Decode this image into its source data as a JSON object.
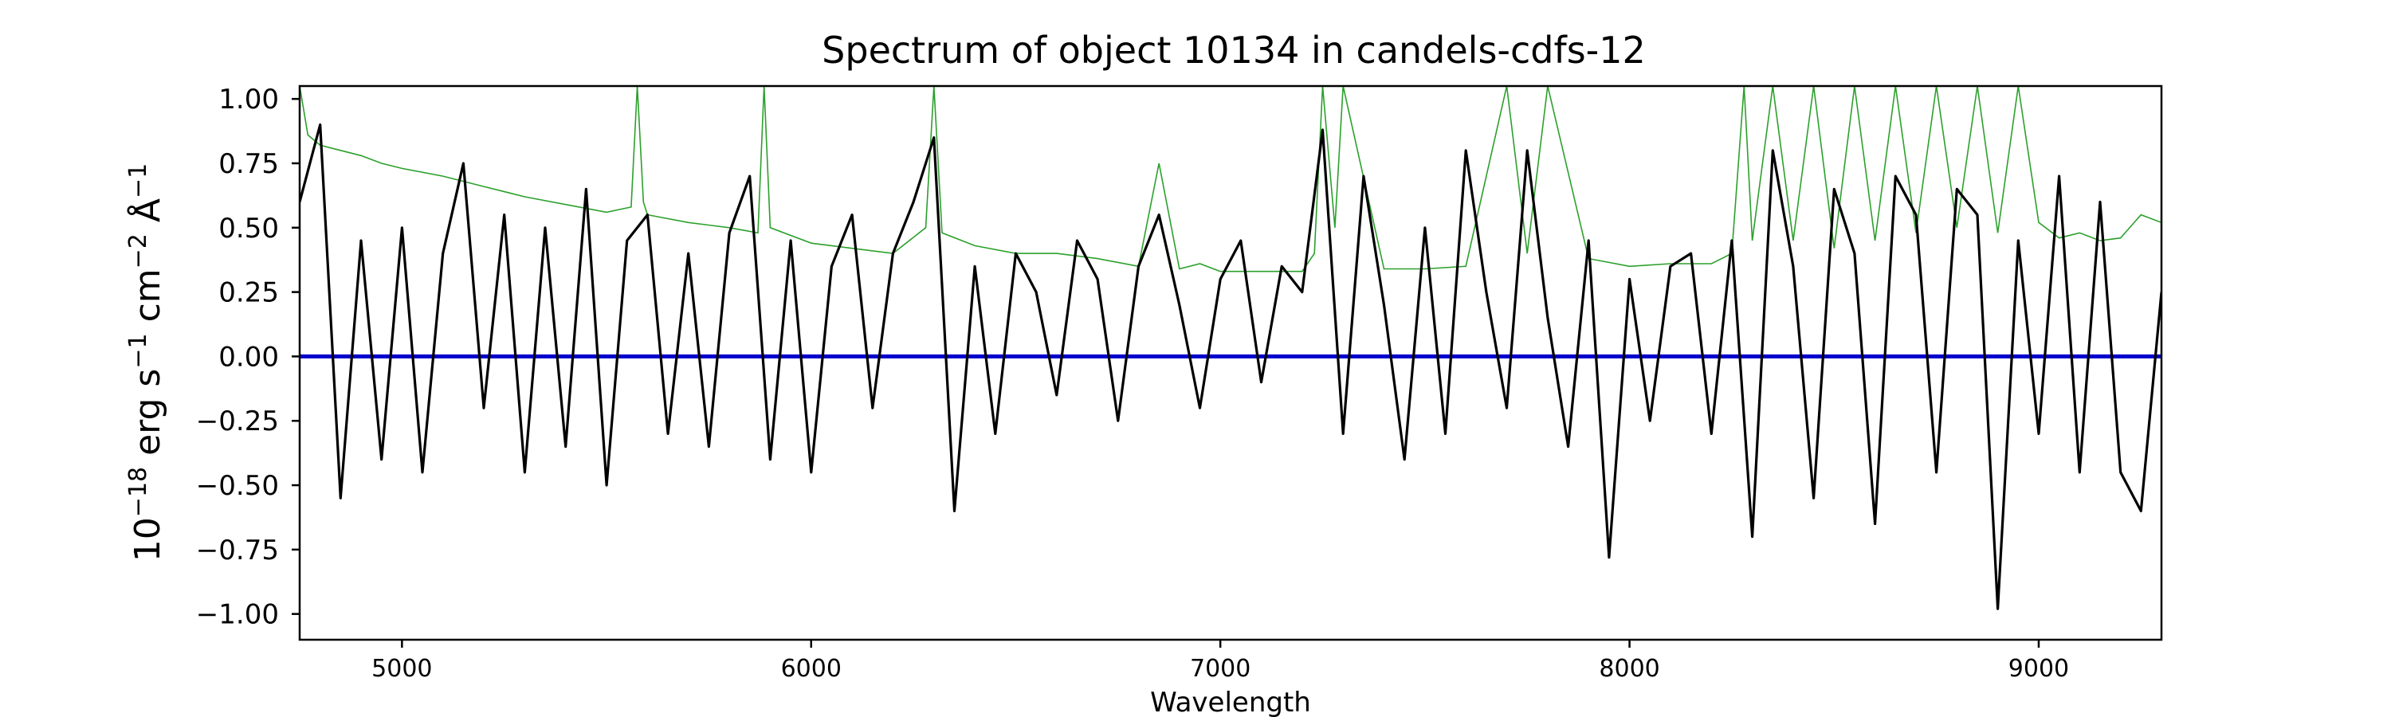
{
  "chart_data": {
    "type": "line",
    "title": "Spectrum of object 10134 in candels-cdfs-12",
    "xlabel": "Wavelength",
    "ylabel": {
      "base": "10",
      "exp1": "−18",
      "text1": " erg s",
      "exp2": "−1",
      "text2": " cm",
      "exp3": "−2",
      "text3": " Å",
      "exp4": "−1"
    },
    "xlim": [
      4750,
      9300
    ],
    "ylim": [
      -1.1,
      1.05
    ],
    "xticks": [
      5000,
      6000,
      7000,
      8000,
      9000
    ],
    "xtick_labels": [
      "5000",
      "6000",
      "7000",
      "8000",
      "9000"
    ],
    "yticks": [
      1.0,
      0.75,
      0.5,
      0.25,
      0.0,
      -0.25,
      -0.5,
      -0.75,
      -1.0
    ],
    "ytick_labels": [
      "1.00",
      "0.75",
      "0.50",
      "0.25",
      "0.00",
      "−0.25",
      "−0.50",
      "−0.75",
      "−1.00"
    ],
    "grid": false,
    "colors": {
      "flux": "#000000",
      "error": "#2ca02c",
      "zero": "#0000cc"
    },
    "series": [
      {
        "key": "flux",
        "x": [
          4750,
          4800,
          4850,
          4900,
          4950,
          5000,
          5050,
          5100,
          5150,
          5200,
          5250,
          5300,
          5350,
          5400,
          5450,
          5500,
          5550,
          5600,
          5650,
          5700,
          5750,
          5800,
          5850,
          5900,
          5950,
          6000,
          6050,
          6100,
          6150,
          6200,
          6250,
          6300,
          6350,
          6400,
          6450,
          6500,
          6550,
          6600,
          6650,
          6700,
          6750,
          6800,
          6850,
          6900,
          6950,
          7000,
          7050,
          7100,
          7150,
          7200,
          7250,
          7300,
          7350,
          7400,
          7450,
          7500,
          7550,
          7600,
          7650,
          7700,
          7750,
          7800,
          7850,
          7900,
          7950,
          8000,
          8050,
          8100,
          8150,
          8200,
          8250,
          8300,
          8350,
          8400,
          8450,
          8500,
          8550,
          8600,
          8650,
          8700,
          8750,
          8800,
          8850,
          8900,
          8950,
          9000,
          9050,
          9100,
          9150,
          9200,
          9250,
          9300
        ],
        "y": [
          0.6,
          0.9,
          -0.55,
          0.45,
          -0.4,
          0.5,
          -0.45,
          0.4,
          0.75,
          -0.2,
          0.55,
          -0.45,
          0.5,
          -0.35,
          0.65,
          -0.5,
          0.45,
          0.55,
          -0.3,
          0.4,
          -0.35,
          0.48,
          0.7,
          -0.4,
          0.45,
          -0.45,
          0.35,
          0.55,
          -0.2,
          0.4,
          0.6,
          0.85,
          -0.6,
          0.35,
          -0.3,
          0.4,
          0.25,
          -0.15,
          0.45,
          0.3,
          -0.25,
          0.35,
          0.55,
          0.2,
          -0.2,
          0.3,
          0.45,
          -0.1,
          0.35,
          0.25,
          0.88,
          -0.3,
          0.7,
          0.2,
          -0.4,
          0.5,
          -0.3,
          0.8,
          0.25,
          -0.2,
          0.8,
          0.15,
          -0.35,
          0.45,
          -0.78,
          0.3,
          -0.25,
          0.35,
          0.4,
          -0.3,
          0.45,
          -0.7,
          0.8,
          0.35,
          -0.55,
          0.65,
          0.4,
          -0.65,
          0.7,
          0.55,
          -0.45,
          0.65,
          0.55,
          -0.98,
          0.45,
          -0.3,
          0.7,
          -0.45,
          0.6,
          -0.45,
          -0.6,
          0.25
        ]
      },
      {
        "key": "error",
        "x": [
          4750,
          4770,
          4800,
          4850,
          4900,
          4950,
          5000,
          5100,
          5200,
          5300,
          5400,
          5500,
          5560,
          5575,
          5590,
          5600,
          5700,
          5800,
          5870,
          5885,
          5900,
          6000,
          6100,
          6200,
          6280,
          6300,
          6320,
          6400,
          6500,
          6600,
          6700,
          6800,
          6850,
          6900,
          6950,
          7000,
          7100,
          7200,
          7230,
          7250,
          7280,
          7300,
          7400,
          7500,
          7600,
          7700,
          7750,
          7800,
          7900,
          8000,
          8100,
          8200,
          8250,
          8280,
          8300,
          8350,
          8400,
          8450,
          8500,
          8550,
          8600,
          8650,
          8700,
          8750,
          8800,
          8850,
          8900,
          8950,
          9000,
          9050,
          9100,
          9150,
          9200,
          9250,
          9300
        ],
        "y": [
          1.05,
          0.86,
          0.82,
          0.8,
          0.78,
          0.75,
          0.73,
          0.7,
          0.66,
          0.62,
          0.59,
          0.56,
          0.58,
          1.05,
          0.6,
          0.55,
          0.52,
          0.5,
          0.48,
          1.05,
          0.5,
          0.44,
          0.42,
          0.4,
          0.5,
          1.05,
          0.48,
          0.43,
          0.4,
          0.4,
          0.38,
          0.35,
          0.75,
          0.34,
          0.36,
          0.33,
          0.33,
          0.33,
          0.4,
          1.05,
          0.5,
          1.05,
          0.34,
          0.34,
          0.35,
          1.05,
          0.4,
          1.05,
          0.38,
          0.35,
          0.36,
          0.36,
          0.4,
          1.05,
          0.45,
          1.05,
          0.45,
          1.05,
          0.42,
          1.05,
          0.45,
          1.05,
          0.48,
          1.05,
          0.5,
          1.05,
          0.48,
          1.05,
          0.52,
          0.46,
          0.48,
          0.45,
          0.46,
          0.55,
          0.52
        ]
      },
      {
        "key": "zero",
        "x": [
          4750,
          9300
        ],
        "y": [
          0.0,
          0.0
        ]
      }
    ]
  }
}
